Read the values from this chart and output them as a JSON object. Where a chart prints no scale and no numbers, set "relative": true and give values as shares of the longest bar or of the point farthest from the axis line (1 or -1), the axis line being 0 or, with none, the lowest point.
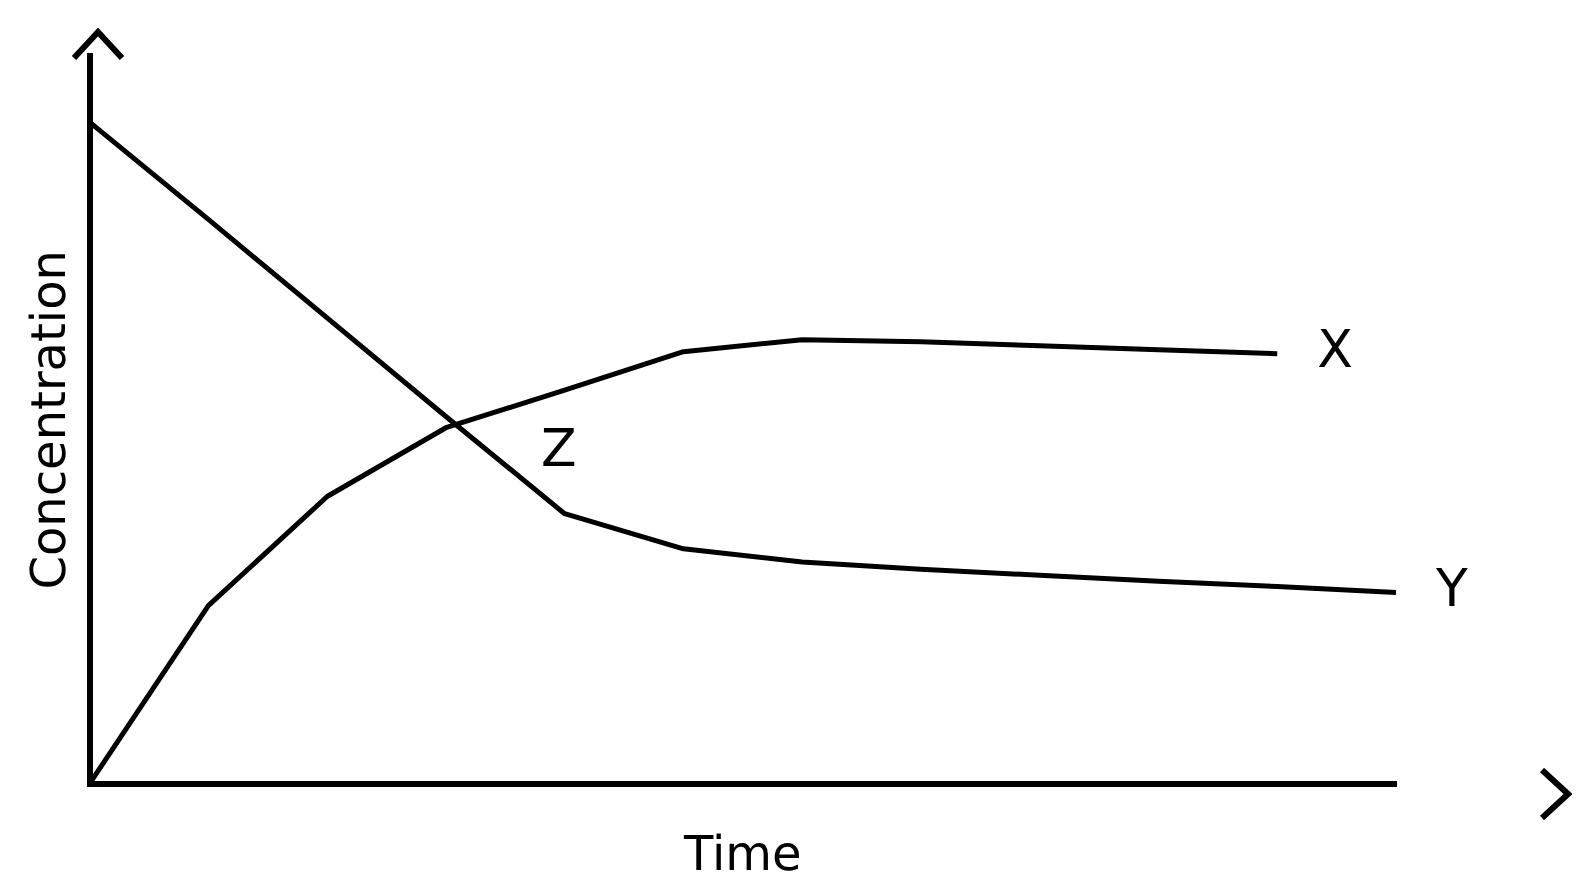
{
  "chart_data": {
    "type": "line",
    "relative": true,
    "xlabel": "Time",
    "ylabel": "Concentration",
    "categories": [
      null,
      null,
      null,
      null,
      null,
      null,
      null,
      null,
      null,
      null,
      null,
      null
    ],
    "series": [
      {
        "name": "X",
        "color": "#000000",
        "values": [
          0,
          0.269,
          0.434,
          0.538,
          0.595,
          0.653,
          0.671,
          0.668,
          0.662,
          0.656,
          0.65,
          null
        ]
      },
      {
        "name": "Y",
        "color": "#000000",
        "values": [
          1,
          0.853,
          0.704,
          0.555,
          0.408,
          0.355,
          0.335,
          0.324,
          0.315,
          0.306,
          0.298,
          0.289
        ]
      }
    ],
    "annotations": [
      "Z"
    ],
    "grid": false,
    "legend": false,
    "marker": "none",
    "line_style": "solid"
  }
}
